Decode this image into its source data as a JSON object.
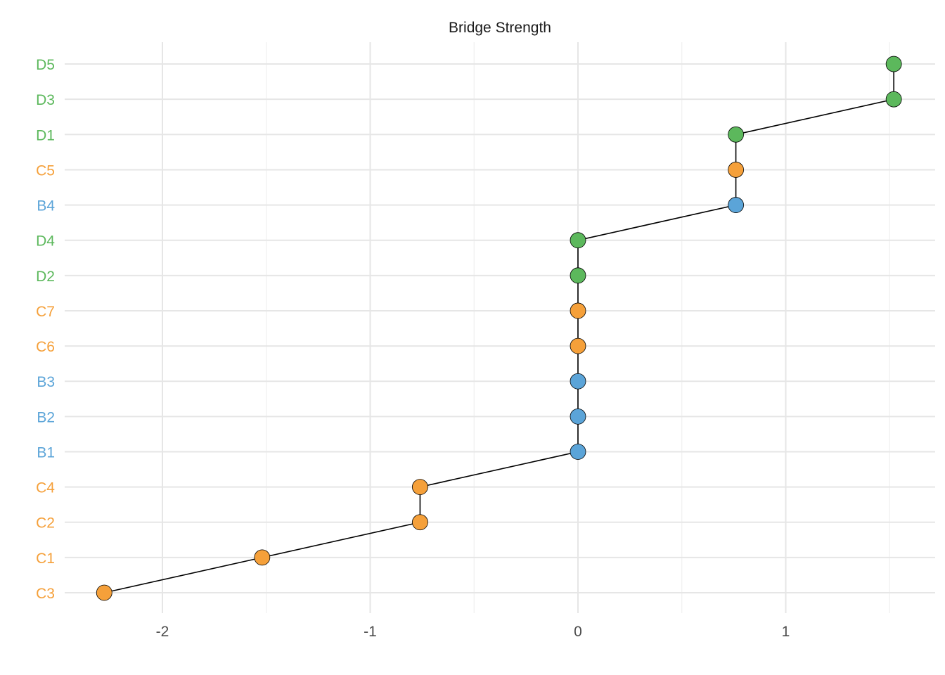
{
  "chart_data": {
    "type": "line",
    "title": "Bridge Strength",
    "xlabel": "",
    "ylabel": "",
    "grid": true,
    "legend": "none",
    "xlim": [
      -2.45,
      1.7
    ],
    "x_ticks": [
      {
        "value": -2,
        "label": "-2"
      },
      {
        "value": -1,
        "label": "-1"
      },
      {
        "value": 0,
        "label": "0"
      },
      {
        "value": 1,
        "label": "1"
      }
    ],
    "x_minor_grid": [
      -1.5,
      -0.5,
      0.5,
      1.5
    ],
    "categories": [
      "C3",
      "C1",
      "C2",
      "C4",
      "B1",
      "B2",
      "B3",
      "C6",
      "C7",
      "D2",
      "D4",
      "B4",
      "C5",
      "D1",
      "D3",
      "D5"
    ],
    "groups": [
      "C",
      "C",
      "C",
      "C",
      "B",
      "B",
      "B",
      "C",
      "C",
      "D",
      "D",
      "B",
      "C",
      "D",
      "D",
      "D"
    ],
    "values": [
      -2.28,
      -1.52,
      -0.76,
      -0.76,
      0,
      0,
      0,
      0,
      0,
      0,
      0,
      0.76,
      0.76,
      0.76,
      1.52,
      1.52
    ],
    "group_colors": {
      "B": "#5ba4d8",
      "C": "#f5a03a",
      "D": "#5cb85c"
    },
    "line_color": "#000000",
    "point_outline": "#000000"
  }
}
